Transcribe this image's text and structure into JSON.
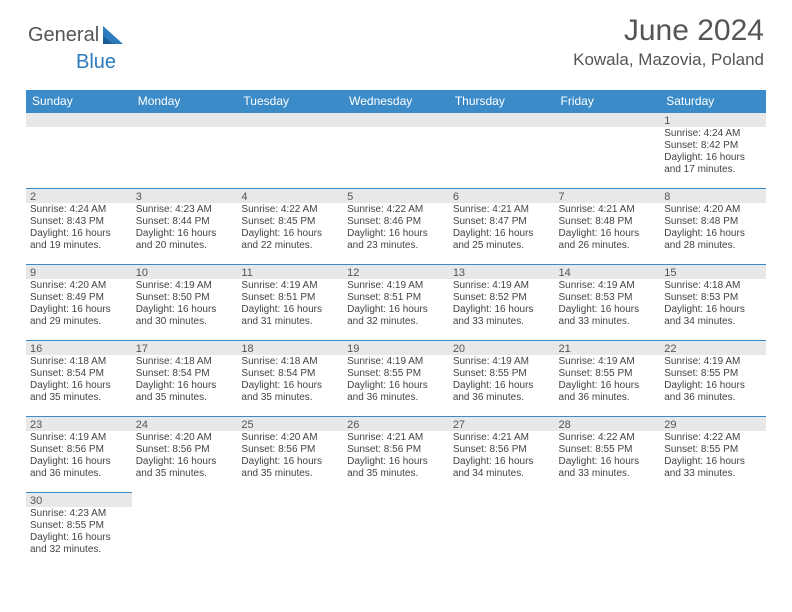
{
  "brand": {
    "part1": "General",
    "part2": "Blue"
  },
  "title": "June 2024",
  "location": "Kowala, Mazovia, Poland",
  "colors": {
    "header_bg": "#3b8bc8",
    "header_text": "#ffffff",
    "daynum_bg": "#e8e8e8",
    "cell_border": "#3b8bc8",
    "body_text": "#444444",
    "title_text": "#555555",
    "brand_accent": "#2b7bbd"
  },
  "weekdays": [
    "Sunday",
    "Monday",
    "Tuesday",
    "Wednesday",
    "Thursday",
    "Friday",
    "Saturday"
  ],
  "weeks": [
    [
      null,
      null,
      null,
      null,
      null,
      null,
      {
        "n": "1",
        "sr": "4:24 AM",
        "ss": "8:42 PM",
        "dl": "16 hours and 17 minutes."
      }
    ],
    [
      {
        "n": "2",
        "sr": "4:24 AM",
        "ss": "8:43 PM",
        "dl": "16 hours and 19 minutes."
      },
      {
        "n": "3",
        "sr": "4:23 AM",
        "ss": "8:44 PM",
        "dl": "16 hours and 20 minutes."
      },
      {
        "n": "4",
        "sr": "4:22 AM",
        "ss": "8:45 PM",
        "dl": "16 hours and 22 minutes."
      },
      {
        "n": "5",
        "sr": "4:22 AM",
        "ss": "8:46 PM",
        "dl": "16 hours and 23 minutes."
      },
      {
        "n": "6",
        "sr": "4:21 AM",
        "ss": "8:47 PM",
        "dl": "16 hours and 25 minutes."
      },
      {
        "n": "7",
        "sr": "4:21 AM",
        "ss": "8:48 PM",
        "dl": "16 hours and 26 minutes."
      },
      {
        "n": "8",
        "sr": "4:20 AM",
        "ss": "8:48 PM",
        "dl": "16 hours and 28 minutes."
      }
    ],
    [
      {
        "n": "9",
        "sr": "4:20 AM",
        "ss": "8:49 PM",
        "dl": "16 hours and 29 minutes."
      },
      {
        "n": "10",
        "sr": "4:19 AM",
        "ss": "8:50 PM",
        "dl": "16 hours and 30 minutes."
      },
      {
        "n": "11",
        "sr": "4:19 AM",
        "ss": "8:51 PM",
        "dl": "16 hours and 31 minutes."
      },
      {
        "n": "12",
        "sr": "4:19 AM",
        "ss": "8:51 PM",
        "dl": "16 hours and 32 minutes."
      },
      {
        "n": "13",
        "sr": "4:19 AM",
        "ss": "8:52 PM",
        "dl": "16 hours and 33 minutes."
      },
      {
        "n": "14",
        "sr": "4:19 AM",
        "ss": "8:53 PM",
        "dl": "16 hours and 33 minutes."
      },
      {
        "n": "15",
        "sr": "4:18 AM",
        "ss": "8:53 PM",
        "dl": "16 hours and 34 minutes."
      }
    ],
    [
      {
        "n": "16",
        "sr": "4:18 AM",
        "ss": "8:54 PM",
        "dl": "16 hours and 35 minutes."
      },
      {
        "n": "17",
        "sr": "4:18 AM",
        "ss": "8:54 PM",
        "dl": "16 hours and 35 minutes."
      },
      {
        "n": "18",
        "sr": "4:18 AM",
        "ss": "8:54 PM",
        "dl": "16 hours and 35 minutes."
      },
      {
        "n": "19",
        "sr": "4:19 AM",
        "ss": "8:55 PM",
        "dl": "16 hours and 36 minutes."
      },
      {
        "n": "20",
        "sr": "4:19 AM",
        "ss": "8:55 PM",
        "dl": "16 hours and 36 minutes."
      },
      {
        "n": "21",
        "sr": "4:19 AM",
        "ss": "8:55 PM",
        "dl": "16 hours and 36 minutes."
      },
      {
        "n": "22",
        "sr": "4:19 AM",
        "ss": "8:55 PM",
        "dl": "16 hours and 36 minutes."
      }
    ],
    [
      {
        "n": "23",
        "sr": "4:19 AM",
        "ss": "8:56 PM",
        "dl": "16 hours and 36 minutes."
      },
      {
        "n": "24",
        "sr": "4:20 AM",
        "ss": "8:56 PM",
        "dl": "16 hours and 35 minutes."
      },
      {
        "n": "25",
        "sr": "4:20 AM",
        "ss": "8:56 PM",
        "dl": "16 hours and 35 minutes."
      },
      {
        "n": "26",
        "sr": "4:21 AM",
        "ss": "8:56 PM",
        "dl": "16 hours and 35 minutes."
      },
      {
        "n": "27",
        "sr": "4:21 AM",
        "ss": "8:56 PM",
        "dl": "16 hours and 34 minutes."
      },
      {
        "n": "28",
        "sr": "4:22 AM",
        "ss": "8:55 PM",
        "dl": "16 hours and 33 minutes."
      },
      {
        "n": "29",
        "sr": "4:22 AM",
        "ss": "8:55 PM",
        "dl": "16 hours and 33 minutes."
      }
    ],
    [
      {
        "n": "30",
        "sr": "4:23 AM",
        "ss": "8:55 PM",
        "dl": "16 hours and 32 minutes."
      },
      null,
      null,
      null,
      null,
      null,
      null
    ]
  ],
  "labels": {
    "sunrise": "Sunrise:",
    "sunset": "Sunset:",
    "daylight": "Daylight:"
  }
}
